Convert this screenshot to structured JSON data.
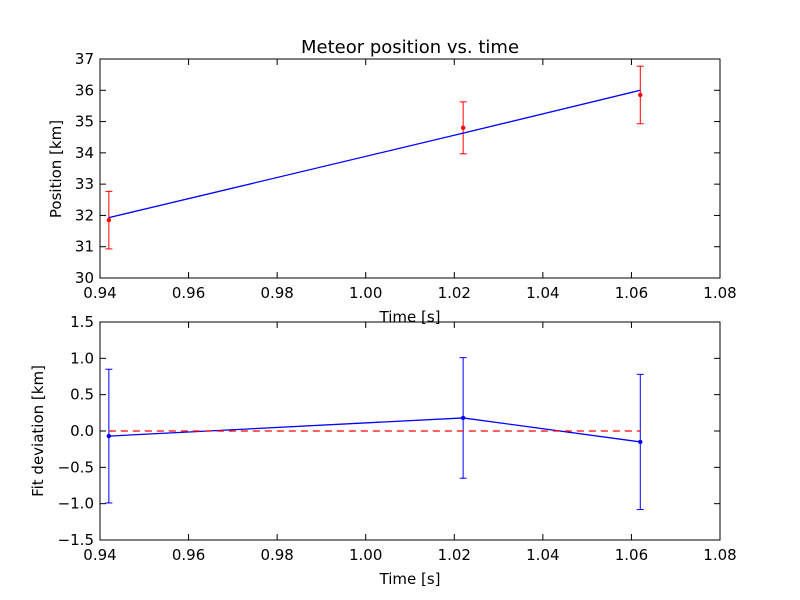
{
  "chart_data": [
    {
      "type": "line",
      "title": "Meteor position vs. time",
      "xlabel": "Time [s]",
      "ylabel": "Position [km]",
      "xlim": [
        0.94,
        1.08
      ],
      "ylim": [
        30,
        37
      ],
      "xticks": [
        "0.94",
        "0.96",
        "0.98",
        "1.00",
        "1.02",
        "1.04",
        "1.06",
        "1.08"
      ],
      "yticks": [
        "30",
        "31",
        "32",
        "33",
        "34",
        "35",
        "36",
        "37"
      ],
      "grid": false,
      "series": [
        {
          "kind": "errorbar",
          "color": "#ff0000",
          "x": [
            0.942,
            1.022,
            1.062
          ],
          "y": [
            31.85,
            34.8,
            35.85
          ],
          "yerr": [
            0.92,
            0.83,
            0.92
          ]
        },
        {
          "kind": "fit-line",
          "color": "#0000ff",
          "x": [
            0.942,
            1.022,
            1.062
          ],
          "y": [
            31.93,
            34.63,
            36.0
          ]
        }
      ]
    },
    {
      "type": "line",
      "title": "",
      "xlabel": "Time [s]",
      "ylabel": "Fit deviation [km]",
      "xlim": [
        0.94,
        1.08
      ],
      "ylim": [
        -1.5,
        1.5
      ],
      "xticks": [
        "0.94",
        "0.96",
        "0.98",
        "1.00",
        "1.02",
        "1.04",
        "1.06",
        "1.08"
      ],
      "yticks": [
        "−1.5",
        "−1.0",
        "−0.5",
        "0.0",
        "0.5",
        "1.0",
        "1.5"
      ],
      "grid": false,
      "series": [
        {
          "kind": "errorbar-line",
          "color": "#0000ff",
          "x": [
            0.942,
            1.022,
            1.062
          ],
          "y": [
            -0.07,
            0.18,
            -0.15
          ],
          "yerr": [
            0.92,
            0.83,
            0.93
          ]
        },
        {
          "kind": "reference-dashed",
          "color": "#ff0000",
          "x": [
            0.942,
            1.062
          ],
          "y": [
            0.0,
            0.0
          ]
        }
      ]
    }
  ]
}
